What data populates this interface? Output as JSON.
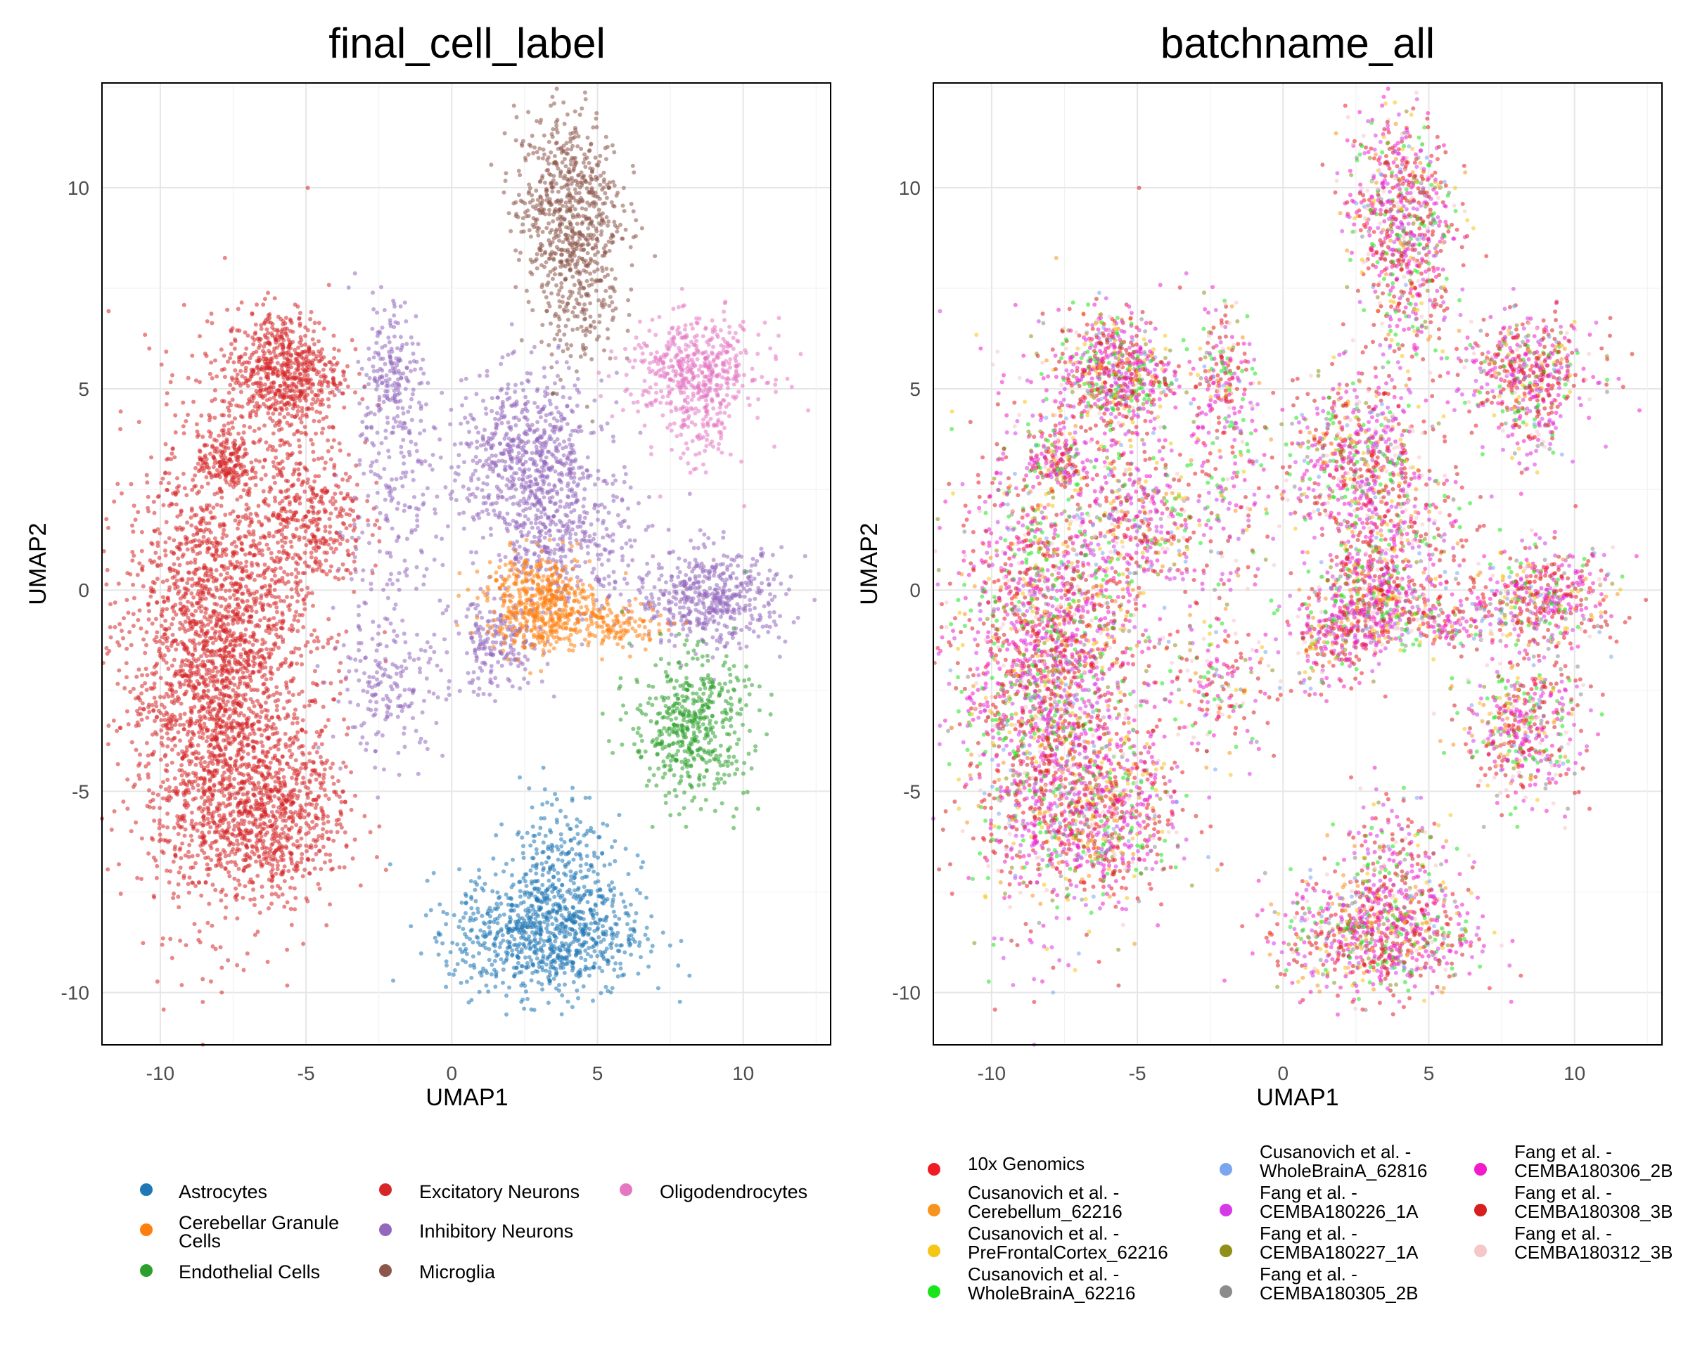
{
  "chart_data": [
    {
      "type": "scatter",
      "title": "final_cell_label",
      "xlabel": "UMAP1",
      "ylabel": "UMAP2",
      "xlim": [
        -12,
        13
      ],
      "ylim": [
        -11.3,
        12.6
      ],
      "xticks": [
        -10,
        -5,
        0,
        5,
        10
      ],
      "yticks": [
        -10,
        -5,
        0,
        5,
        10
      ],
      "grid": true,
      "legend_position": "bottom",
      "legend": [
        {
          "label": "Astrocytes",
          "color": "#1f77b4"
        },
        {
          "label": "Cerebellar Granule Cells",
          "color": "#ff7f0e"
        },
        {
          "label": "Endothelial Cells",
          "color": "#2ca02c"
        },
        {
          "label": "Excitatory Neurons",
          "color": "#d62728"
        },
        {
          "label": "Inhibitory Neurons",
          "color": "#9467bd"
        },
        {
          "label": "Microglia",
          "color": "#8c564b"
        },
        {
          "label": "Oligodendrocytes",
          "color": "#e377c2"
        }
      ],
      "clusters": [
        {
          "label": "Excitatory Neurons",
          "cx": -8.0,
          "cy": -2.0,
          "sx": 1.6,
          "sy": 2.8,
          "n": 2600
        },
        {
          "label": "Excitatory Neurons",
          "cx": -6.2,
          "cy": -5.6,
          "sx": 1.3,
          "sy": 1.0,
          "n": 700
        },
        {
          "label": "Excitatory Neurons",
          "cx": -5.8,
          "cy": 5.4,
          "sx": 1.0,
          "sy": 0.8,
          "n": 700
        },
        {
          "label": "Excitatory Neurons",
          "cx": -7.8,
          "cy": 3.2,
          "sx": 0.45,
          "sy": 0.35,
          "n": 160
        },
        {
          "label": "Excitatory Neurons",
          "cx": -4.8,
          "cy": 1.8,
          "sx": 0.9,
          "sy": 1.0,
          "n": 350
        },
        {
          "label": "Inhibitory Neurons",
          "cx": 2.6,
          "cy": 3.3,
          "sx": 1.3,
          "sy": 1.0,
          "n": 650
        },
        {
          "label": "Inhibitory Neurons",
          "cx": 3.8,
          "cy": 1.2,
          "sx": 1.2,
          "sy": 0.8,
          "n": 350
        },
        {
          "label": "Inhibitory Neurons",
          "cx": -2.0,
          "cy": 5.4,
          "sx": 0.5,
          "sy": 0.9,
          "n": 180
        },
        {
          "label": "Inhibitory Neurons",
          "cx": -2.2,
          "cy": 1.8,
          "sx": 0.9,
          "sy": 2.0,
          "n": 200
        },
        {
          "label": "Inhibitory Neurons",
          "cx": -2.2,
          "cy": -2.5,
          "sx": 1.0,
          "sy": 0.8,
          "n": 160
        },
        {
          "label": "Inhibitory Neurons",
          "cx": 8.9,
          "cy": -0.2,
          "sx": 1.3,
          "sy": 0.6,
          "n": 500
        },
        {
          "label": "Inhibitory Neurons",
          "cx": 1.6,
          "cy": -1.4,
          "sx": 0.8,
          "sy": 0.6,
          "n": 200
        },
        {
          "label": "Cerebellar Granule Cells",
          "cx": 3.0,
          "cy": -0.3,
          "sx": 0.9,
          "sy": 0.6,
          "n": 500
        },
        {
          "label": "Cerebellar Granule Cells",
          "cx": 5.5,
          "cy": -0.9,
          "sx": 1.0,
          "sy": 0.3,
          "n": 150
        },
        {
          "label": "Endothelial Cells",
          "cx": 8.2,
          "cy": -3.4,
          "sx": 1.0,
          "sy": 0.9,
          "n": 500
        },
        {
          "label": "Astrocytes",
          "cx": 3.3,
          "cy": -8.5,
          "sx": 1.6,
          "sy": 0.8,
          "n": 900
        },
        {
          "label": "Astrocytes",
          "cx": 3.6,
          "cy": -6.4,
          "sx": 0.9,
          "sy": 0.8,
          "n": 160
        },
        {
          "label": "Microglia",
          "cx": 4.0,
          "cy": 9.5,
          "sx": 0.9,
          "sy": 1.2,
          "n": 650
        },
        {
          "label": "Microglia",
          "cx": 4.4,
          "cy": 7.0,
          "sx": 0.7,
          "sy": 0.9,
          "n": 150
        },
        {
          "label": "Oligodendrocytes",
          "cx": 8.4,
          "cy": 5.5,
          "sx": 1.2,
          "sy": 0.6,
          "n": 450
        },
        {
          "label": "Oligodendrocytes",
          "cx": 8.5,
          "cy": 4.2,
          "sx": 0.6,
          "sy": 0.7,
          "n": 120
        }
      ]
    },
    {
      "type": "scatter",
      "title": "batchname_all",
      "xlabel": "UMAP1",
      "ylabel": "UMAP2",
      "xlim": [
        -12,
        13
      ],
      "ylim": [
        -11.3,
        12.6
      ],
      "xticks": [
        -10,
        -5,
        0,
        5,
        10
      ],
      "yticks": [
        -10,
        -5,
        0,
        5,
        10
      ],
      "grid": true,
      "legend_position": "bottom",
      "legend": [
        {
          "label": "10x Genomics",
          "color": "#ee1c25"
        },
        {
          "label": "Cusanovich et al. - Cerebellum_62216",
          "color": "#f7941d"
        },
        {
          "label": "Cusanovich et al. - PreFrontalCortex_62216",
          "color": "#f5c518"
        },
        {
          "label": "Cusanovich et al. - WholeBrainA_62216",
          "color": "#19e619"
        },
        {
          "label": "Cusanovich et al. - WholeBrainA_62816",
          "color": "#7aa6f0"
        },
        {
          "label": "Fang et al. - CEMBA180226_1A",
          "color": "#d63ae8"
        },
        {
          "label": "Fang et al. - CEMBA180227_1A",
          "color": "#8f8f1a"
        },
        {
          "label": "Fang et al. - CEMBA180305_2B",
          "color": "#8c8c8c"
        },
        {
          "label": "Fang et al. - CEMBA180306_2B",
          "color": "#f21aca"
        },
        {
          "label": "Fang et al. - CEMBA180308_3B",
          "color": "#d62020"
        },
        {
          "label": "Fang et al. - CEMBA180312_3B",
          "color": "#f5c7c7"
        }
      ]
    }
  ],
  "legend_left": {
    "col1": [
      "Astrocytes",
      "Cerebellar Granule",
      "Cells",
      "Endothelial Cells"
    ],
    "col2": [
      "Excitatory Neurons",
      "Inhibitory Neurons",
      "Microglia"
    ],
    "col3": [
      "Oligodendrocytes"
    ]
  },
  "legend_right": {
    "items": [
      [
        "10x Genomics"
      ],
      [
        "Cusanovich et al. -",
        "Cerebellum_62216"
      ],
      [
        "Cusanovich et al. -",
        "PreFrontalCortex_62216"
      ],
      [
        "Cusanovich et al. -",
        "WholeBrainA_62216"
      ],
      [
        "Cusanovich et al. -",
        "WholeBrainA_62816"
      ],
      [
        "Fang et al. -",
        "CEMBA180226_1A"
      ],
      [
        "Fang et al. -",
        "CEMBA180227_1A"
      ],
      [
        "Fang et al. -",
        "CEMBA180305_2B"
      ],
      [
        "Fang et al. -",
        "CEMBA180306_2B"
      ],
      [
        "Fang et al. -",
        "CEMBA180308_3B"
      ],
      [
        "Fang et al. -",
        "CEMBA180312_3B"
      ]
    ]
  }
}
